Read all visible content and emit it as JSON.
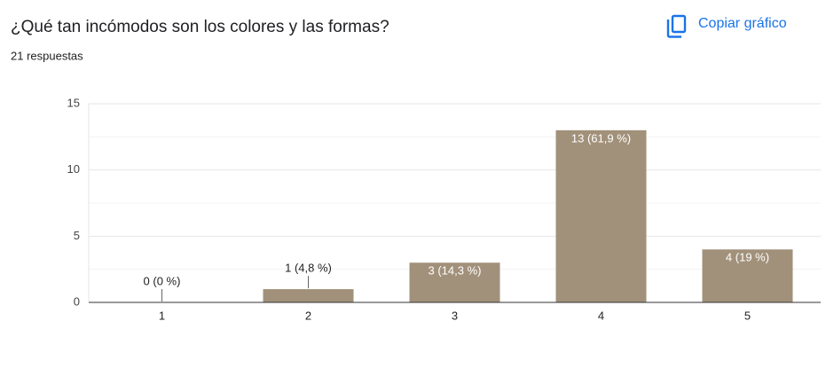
{
  "chart_data": {
    "type": "bar",
    "title": "¿Qué tan incómodos son los colores y las formas?",
    "subtitle": "21 respuestas",
    "button": "Copiar gráfico",
    "categories": [
      "1",
      "2",
      "3",
      "4",
      "5"
    ],
    "values": [
      0,
      1,
      3,
      13,
      4
    ],
    "value_labels": [
      "0 (0 %)",
      "1 (4,8 %)",
      "3 (14,3 %)",
      "13 (61,9 %)",
      "4 (19 %)"
    ],
    "color": "#a2917a",
    "ylim": [
      0,
      15
    ],
    "yticks": [
      0,
      5,
      10,
      15
    ],
    "grid": true
  }
}
